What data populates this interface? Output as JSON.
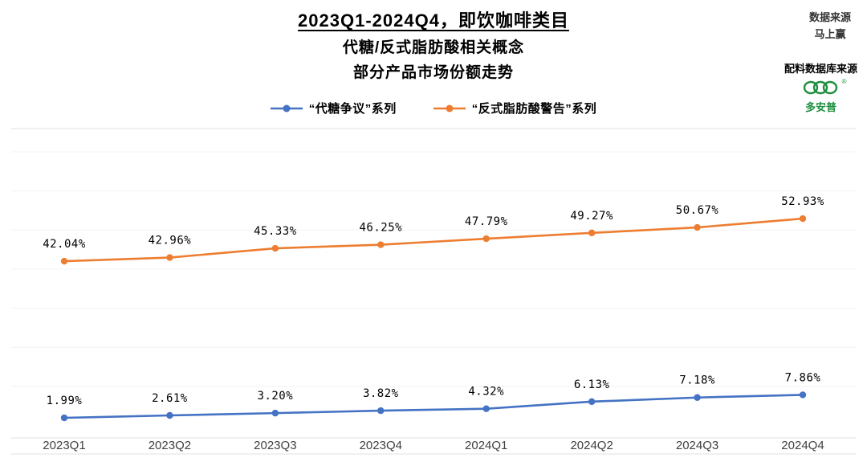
{
  "header": {
    "title_lines": {
      "0": "2023Q1-2024Q4，即饮咖啡类目",
      "1": "代糖/反式脂肪酸相关概念",
      "2": "部分产品市场份额走势"
    },
    "data_source_label": "数据来源",
    "data_source_name": "马上赢",
    "ingredient_source_label": "配料数据库来源",
    "logo_name": "多安普",
    "logo_registered_mark": "®"
  },
  "legend": {
    "items": [
      {
        "label": "“代糖争议”系列",
        "color": "#4472C4"
      },
      {
        "label": "“反式脂肪酸警告”系列",
        "color": "#ED7D31"
      }
    ]
  },
  "chart_data": {
    "type": "line",
    "title": "2023Q1-2024Q4，即饮咖啡类目 代糖/反式脂肪酸相关概念 部分产品市场份额走势",
    "categories": [
      "2023Q1",
      "2023Q2",
      "2023Q3",
      "2023Q4",
      "2024Q1",
      "2024Q2",
      "2024Q3",
      "2024Q4"
    ],
    "series": [
      {
        "name": "“代糖争议”系列",
        "color": "#4472C4",
        "values": [
          1.99,
          2.61,
          3.2,
          3.82,
          4.32,
          6.13,
          7.18,
          7.86
        ]
      },
      {
        "name": "“反式脂肪酸警告”系列",
        "color": "#ED7D31",
        "values": [
          42.04,
          42.96,
          45.33,
          46.25,
          47.79,
          49.27,
          50.67,
          52.93
        ]
      }
    ],
    "value_suffix": "%",
    "ylim": [
      0,
      78
    ],
    "grid": true,
    "legend_position": "top"
  },
  "colors": {
    "blue": "#4472C4",
    "orange": "#ED7D31",
    "logo_green": "#1e8f3e",
    "grid_light": "#f3f3f3",
    "border_line": "#e2e2e2",
    "axis_text": "#404040"
  }
}
